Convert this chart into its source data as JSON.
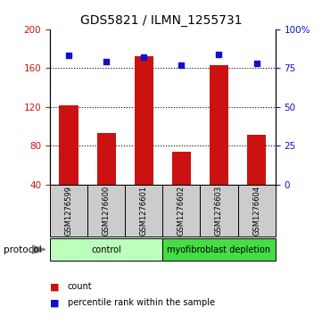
{
  "title": "GDS5821 / ILMN_1255731",
  "samples": [
    "GSM1276599",
    "GSM1276600",
    "GSM1276601",
    "GSM1276602",
    "GSM1276603",
    "GSM1276604"
  ],
  "bar_values": [
    122,
    93,
    172,
    74,
    163,
    91
  ],
  "percentile_values": [
    83,
    79,
    82,
    77,
    84,
    78
  ],
  "ylim_left": [
    40,
    200
  ],
  "yticks_left": [
    40,
    80,
    120,
    160,
    200
  ],
  "ylim_right": [
    0,
    100
  ],
  "yticks_right": [
    0,
    25,
    50,
    75,
    100
  ],
  "bar_color": "#cc1111",
  "dot_color": "#1111cc",
  "grid_lines": [
    80,
    120,
    160
  ],
  "protocols": [
    {
      "label": "control",
      "indices": [
        0,
        1,
        2
      ],
      "color": "#bbffbb"
    },
    {
      "label": "myofibroblast depletion",
      "indices": [
        3,
        4,
        5
      ],
      "color": "#44dd44"
    }
  ],
  "protocol_label": "protocol",
  "legend_count_label": "count",
  "legend_pct_label": "percentile rank within the sample",
  "background_color": "#ffffff",
  "plot_bg_color": "#ffffff",
  "label_area_bg": "#cccccc",
  "title_fontsize": 10,
  "tick_fontsize": 7.5,
  "label_fontsize": 7
}
